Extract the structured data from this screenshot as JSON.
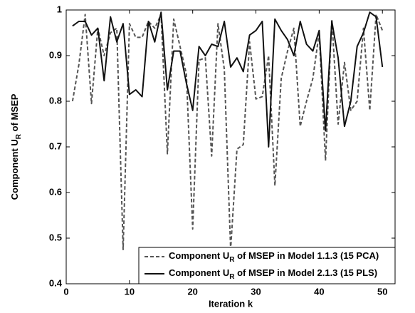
{
  "chart_data": {
    "type": "line",
    "xlabel": "Iteration k",
    "ylabel": [
      "Component U",
      "R",
      " of MSEP"
    ],
    "x": [
      1,
      2,
      3,
      4,
      5,
      6,
      7,
      8,
      9,
      10,
      11,
      12,
      13,
      14,
      15,
      16,
      17,
      18,
      19,
      20,
      21,
      22,
      23,
      24,
      25,
      26,
      27,
      28,
      29,
      30,
      31,
      32,
      33,
      34,
      35,
      36,
      37,
      38,
      39,
      40,
      41,
      42,
      43,
      44,
      45,
      46,
      47,
      48,
      49,
      50
    ],
    "series": [
      {
        "name": [
          "Component U",
          "R",
          " of MSEP in Model 1.1.3 (15 PCA)"
        ],
        "color": "#555555",
        "dash": true,
        "values": [
          0.8,
          0.88,
          0.99,
          0.795,
          0.96,
          0.9,
          0.95,
          0.96,
          0.475,
          0.97,
          0.94,
          0.94,
          0.975,
          0.96,
          0.99,
          0.685,
          0.98,
          0.92,
          0.86,
          0.52,
          0.89,
          0.895,
          0.68,
          0.97,
          0.87,
          0.475,
          0.695,
          0.705,
          0.93,
          0.805,
          0.81,
          0.9,
          0.615,
          0.85,
          0.91,
          0.96,
          0.745,
          0.8,
          0.85,
          0.95,
          0.67,
          0.98,
          0.75,
          0.885,
          0.78,
          0.8,
          0.96,
          0.78,
          0.99,
          0.955
        ]
      },
      {
        "name": [
          "Component U",
          "R",
          " of MSEP in Model 2.1.3 (15 PLS)"
        ],
        "color": "#111111",
        "dash": false,
        "values": [
          0.965,
          0.975,
          0.975,
          0.945,
          0.96,
          0.845,
          0.985,
          0.93,
          0.97,
          0.815,
          0.825,
          0.81,
          0.975,
          0.93,
          0.995,
          0.825,
          0.91,
          0.91,
          0.84,
          0.78,
          0.92,
          0.9,
          0.925,
          0.92,
          0.975,
          0.875,
          0.895,
          0.865,
          0.945,
          0.955,
          0.975,
          0.7,
          0.98,
          0.955,
          0.935,
          0.9,
          0.975,
          0.925,
          0.91,
          0.955,
          0.735,
          0.975,
          0.895,
          0.745,
          0.8,
          0.92,
          0.95,
          0.995,
          0.985,
          0.875
        ]
      }
    ],
    "xlim": [
      0,
      52
    ],
    "xticks": [
      0,
      10,
      20,
      30,
      40,
      50
    ],
    "ylim": [
      0.4,
      1
    ],
    "yticks": [
      0.4,
      0.5,
      0.6,
      0.7,
      0.8,
      0.9,
      1
    ],
    "grid": false,
    "legend": "lower right"
  }
}
